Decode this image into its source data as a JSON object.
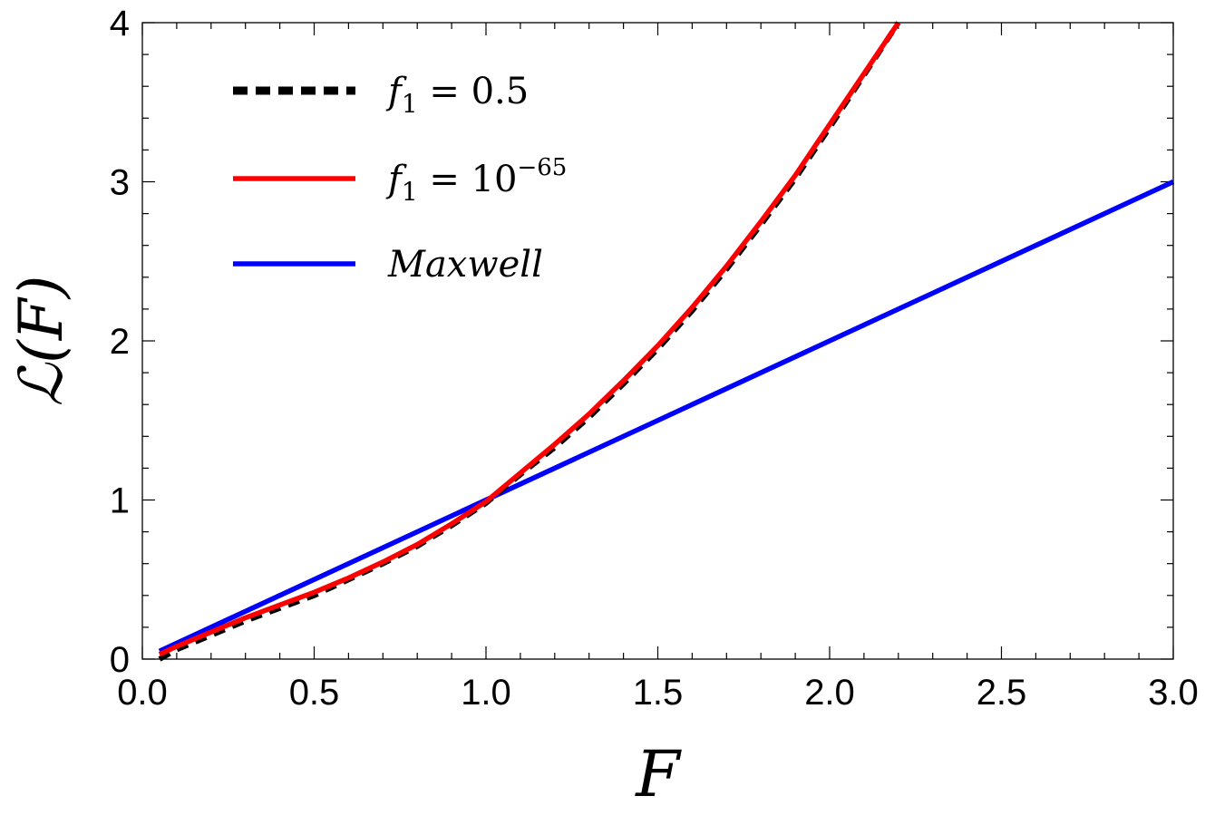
{
  "chart_data": {
    "type": "line",
    "xlabel": "F",
    "ylabel": "ℒ(F)",
    "xlim": [
      0,
      3.0
    ],
    "ylim": [
      0,
      4
    ],
    "grid": false,
    "legend_position": "top-left",
    "x_ticks": [
      "0.0",
      "0.5",
      "1.0",
      "1.5",
      "2.0",
      "2.5",
      "3.0"
    ],
    "y_ticks": [
      "0",
      "1",
      "2",
      "3",
      "4"
    ],
    "series": [
      {
        "name": "f₁ = 0.5",
        "legend_base": "f",
        "legend_sub": "1",
        "legend_rest": " = 0.5",
        "legend_sup": "",
        "style": "dashed",
        "color": "#000000",
        "x": [
          0.05,
          0.1,
          0.2,
          0.3,
          0.4,
          0.5,
          0.6,
          0.7,
          0.8,
          0.9,
          1.0,
          1.1,
          1.2,
          1.3,
          1.4,
          1.5,
          1.6,
          1.7,
          1.8,
          1.9,
          2.0,
          2.1,
          2.2
        ],
        "y": [
          0.0,
          0.06,
          0.15,
          0.24,
          0.32,
          0.4,
          0.5,
          0.6,
          0.71,
          0.84,
          0.98,
          1.16,
          1.33,
          1.52,
          1.73,
          1.95,
          2.19,
          2.45,
          2.73,
          3.02,
          3.34,
          3.67,
          4.0
        ]
      },
      {
        "name": "f₁ = 10⁻⁶⁵",
        "legend_base": "f",
        "legend_sub": "1",
        "legend_rest": " = 10",
        "legend_sup": "−65",
        "style": "solid",
        "color": "#ff0000",
        "x": [
          0.05,
          0.1,
          0.2,
          0.3,
          0.4,
          0.5,
          0.6,
          0.7,
          0.8,
          0.9,
          1.0,
          1.1,
          1.2,
          1.3,
          1.4,
          1.5,
          1.6,
          1.7,
          1.8,
          1.9,
          2.0,
          2.1,
          2.2
        ],
        "y": [
          0.03,
          0.08,
          0.17,
          0.26,
          0.34,
          0.42,
          0.51,
          0.61,
          0.72,
          0.85,
          0.99,
          1.17,
          1.35,
          1.54,
          1.75,
          1.97,
          2.21,
          2.47,
          2.75,
          3.04,
          3.36,
          3.68,
          4.0
        ]
      },
      {
        "name": "Maxwell",
        "legend_base": "Maxwell",
        "legend_sub": "",
        "legend_rest": "",
        "legend_sup": "",
        "style": "solid",
        "color": "#0000ff",
        "x": [
          0.05,
          3.0
        ],
        "y": [
          0.05,
          3.0
        ]
      }
    ]
  }
}
